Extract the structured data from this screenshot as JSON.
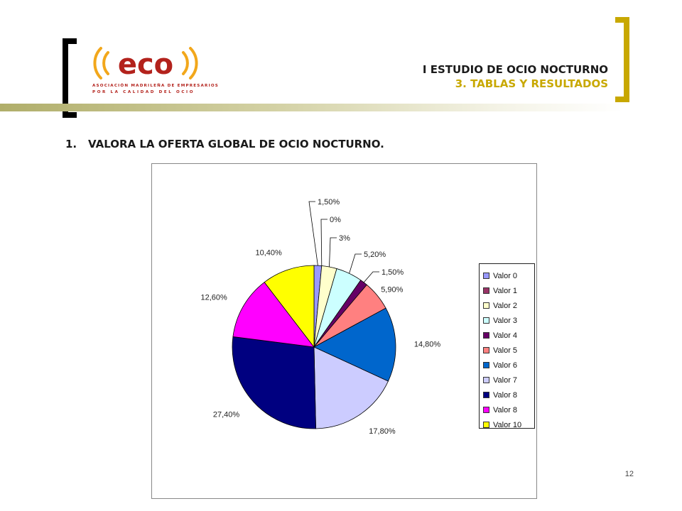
{
  "header": {
    "logo_text": "eco",
    "logo_subtitle_line1": "ASOCIACIÓN MADRILEÑA DE EMPRESARIOS",
    "logo_subtitle_line2": "POR LA CALIDAD DEL OCIO",
    "title_line1": "I ESTUDIO DE OCIO NOCTURNO",
    "title_line2": "3. TABLAS Y RESULTADOS"
  },
  "question": {
    "number": "1.",
    "text": "VALORA LA OFERTA GLOBAL DE OCIO NOCTURNO."
  },
  "colors": {
    "bracket_dark": "#000000",
    "bracket_gold": "#c8a800",
    "logo_orange": "#f2a71b",
    "logo_red": "#b3221c"
  },
  "chart_data": {
    "type": "pie",
    "title": "",
    "legend_position": "right",
    "slices": [
      {
        "name": "Valor 0",
        "value": 1.5,
        "label": "1,50%",
        "color": "#9999ff"
      },
      {
        "name": "Valor 1",
        "value": 0,
        "label": "0%",
        "color": "#993366"
      },
      {
        "name": "Valor 2",
        "value": 3,
        "label": "3%",
        "color": "#ffffcc"
      },
      {
        "name": "Valor 3",
        "value": 5.2,
        "label": "5,20%",
        "color": "#ccffff"
      },
      {
        "name": "Valor 4",
        "value": 1.5,
        "label": "1,50%",
        "color": "#660066"
      },
      {
        "name": "Valor 5",
        "value": 5.9,
        "label": "5,90%",
        "color": "#ff8080"
      },
      {
        "name": "Valor 6",
        "value": 14.8,
        "label": "14,80%",
        "color": "#0066cc"
      },
      {
        "name": "Valor 7",
        "value": 17.8,
        "label": "17,80%",
        "color": "#ccccff"
      },
      {
        "name": "Valor 8",
        "value": 27.4,
        "label": "27,40%",
        "color": "#000080"
      },
      {
        "name": "Valor 8",
        "value": 12.6,
        "label": "12,60%",
        "color": "#ff00ff"
      },
      {
        "name": "Valor 10",
        "value": 10.4,
        "label": "10,40%",
        "color": "#ffff00"
      }
    ]
  },
  "footer": {
    "page_number": "12"
  }
}
